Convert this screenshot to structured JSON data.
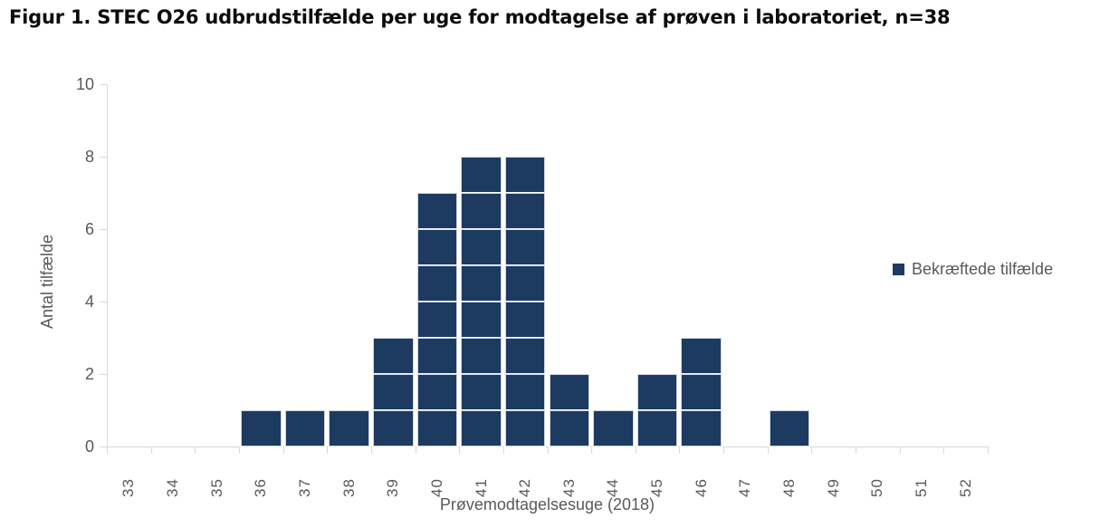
{
  "chart_data": {
    "type": "bar",
    "title": "Figur 1. STEC O26 udbrudstilfælde per uge for modtagelse af prøven i laboratoriet, n=38",
    "categories": [
      "33",
      "34",
      "35",
      "36",
      "37",
      "38",
      "39",
      "40",
      "41",
      "42",
      "43",
      "44",
      "45",
      "46",
      "47",
      "48",
      "49",
      "50",
      "51",
      "52"
    ],
    "values": [
      0,
      0,
      0,
      1,
      1,
      1,
      3,
      7,
      8,
      8,
      2,
      1,
      2,
      3,
      0,
      1,
      0,
      0,
      0,
      0
    ],
    "total_n": 38,
    "xlabel": "Prøvemodtagelsesuge (2018)",
    "ylabel": "Antal tilfælde",
    "ylim": [
      0,
      10
    ],
    "yticks": [
      0,
      2,
      4,
      6,
      8,
      10
    ],
    "grid": false,
    "bar_style": "stacked-unit-squares",
    "legend_position": "right",
    "legend": [
      {
        "label": "Bekræftede tilfælde",
        "color": "#1d3a61"
      }
    ],
    "colors": {
      "bar_fill": "#1d3a61",
      "cell_separator": "#cfd6e0",
      "axis_line": "#d9d9d9",
      "tick_label": "#595959",
      "title_text": "#0b0b0c"
    }
  }
}
